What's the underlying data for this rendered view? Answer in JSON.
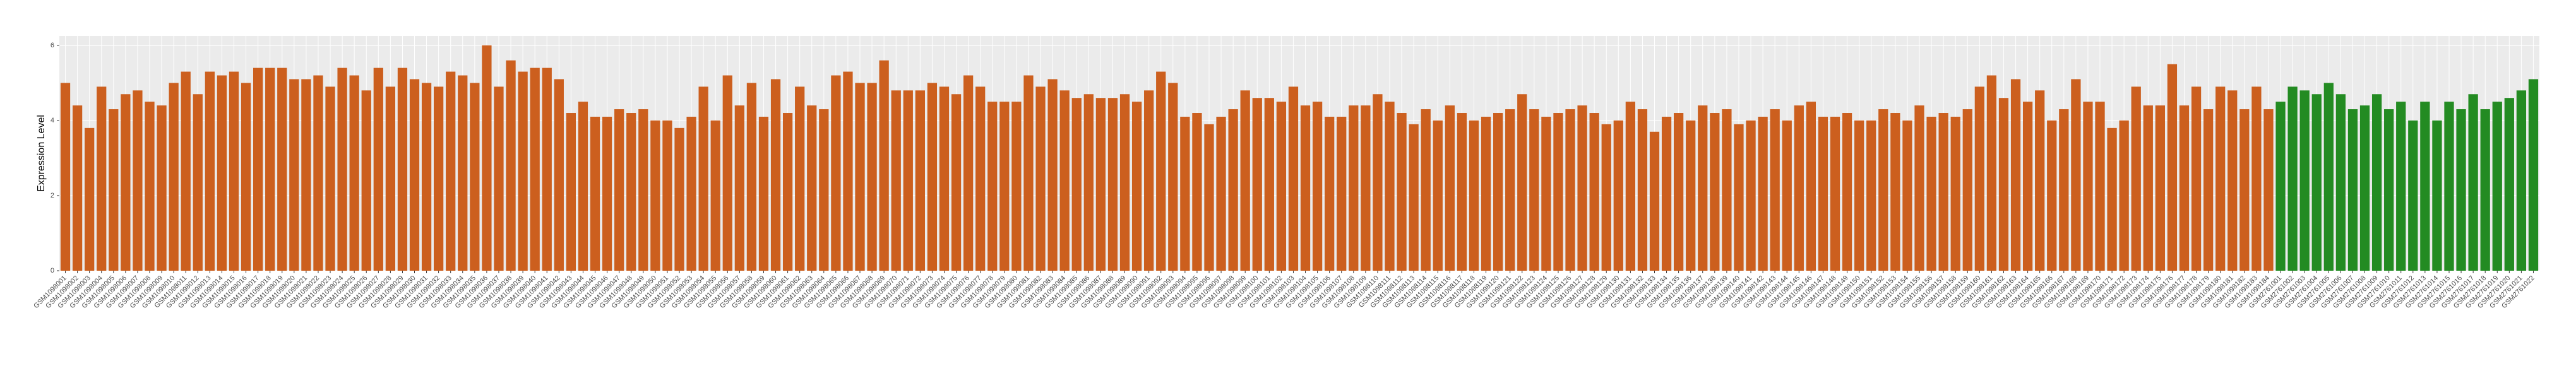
{
  "chart_data": {
    "type": "bar",
    "y_label": "Expression Level",
    "ylim": [
      0,
      6.25
    ],
    "yticks": [
      0,
      2,
      4,
      6
    ],
    "grid": true,
    "series": [
      {
        "color": "#cc5f1e",
        "categories": [
          "GSM1098001",
          "GSM1098002",
          "GSM1098003",
          "GSM1098004",
          "GSM1098005",
          "GSM1098006",
          "GSM1098007",
          "GSM1098008",
          "GSM1098009",
          "GSM1098010",
          "GSM1098011",
          "GSM1098012",
          "GSM1098013",
          "GSM1098014",
          "GSM1098015",
          "GSM1098016",
          "GSM1098017",
          "GSM1098018",
          "GSM1098019",
          "GSM1098020",
          "GSM1098021",
          "GSM1098022",
          "GSM1098023",
          "GSM1098024",
          "GSM1098025",
          "GSM1098026",
          "GSM1098027",
          "GSM1098028",
          "GSM1098029",
          "GSM1098030",
          "GSM1098031",
          "GSM1098032",
          "GSM1098033",
          "GSM1098034",
          "GSM1098035",
          "GSM1098036",
          "GSM1098037",
          "GSM1098038",
          "GSM1098039",
          "GSM1098040",
          "GSM1098041",
          "GSM1098042",
          "GSM1098043",
          "GSM1098044",
          "GSM1098045",
          "GSM1098046",
          "GSM1098047",
          "GSM1098048",
          "GSM1098049",
          "GSM1098050",
          "GSM1098051",
          "GSM1098052",
          "GSM1098053",
          "GSM1098054",
          "GSM1098055",
          "GSM1098056",
          "GSM1098057",
          "GSM1098058",
          "GSM1098059",
          "GSM1098060",
          "GSM1098061",
          "GSM1098062",
          "GSM1098063",
          "GSM1098064",
          "GSM1098065",
          "GSM1098066",
          "GSM1098067",
          "GSM1098068",
          "GSM1098069",
          "GSM1098070",
          "GSM1098071",
          "GSM1098072",
          "GSM1098073",
          "GSM1098074",
          "GSM1098075",
          "GSM1098076",
          "GSM1098077",
          "GSM1098078",
          "GSM1098079",
          "GSM1098080",
          "GSM1098081",
          "GSM1098082",
          "GSM1098083",
          "GSM1098084",
          "GSM1098085",
          "GSM1098086",
          "GSM1098087",
          "GSM1098088",
          "GSM1098089",
          "GSM1098090",
          "GSM1098091",
          "GSM1098092",
          "GSM1098093",
          "GSM1098094",
          "GSM1098095",
          "GSM1098096",
          "GSM1098097",
          "GSM1098098",
          "GSM1098099",
          "GSM1098100",
          "GSM1098101",
          "GSM1098102",
          "GSM1098103",
          "GSM1098104",
          "GSM1098105",
          "GSM1098106",
          "GSM1098107",
          "GSM1098108",
          "GSM1098109",
          "GSM1098110",
          "GSM1098111",
          "GSM1098112",
          "GSM1098113",
          "GSM1098114",
          "GSM1098115",
          "GSM1098116",
          "GSM1098117",
          "GSM1098118",
          "GSM1098119",
          "GSM1098120",
          "GSM1098121",
          "GSM1098122",
          "GSM1098123",
          "GSM1098124",
          "GSM1098125",
          "GSM1098126",
          "GSM1098127",
          "GSM1098128",
          "GSM1098129",
          "GSM1098130",
          "GSM1098131",
          "GSM1098132",
          "GSM1098133",
          "GSM1098134",
          "GSM1098135",
          "GSM1098136",
          "GSM1098137",
          "GSM1098138",
          "GSM1098139",
          "GSM1098140",
          "GSM1098141",
          "GSM1098142",
          "GSM1098143",
          "GSM1098144",
          "GSM1098145",
          "GSM1098146",
          "GSM1098147",
          "GSM1098148",
          "GSM1098149",
          "GSM1098150",
          "GSM1098151",
          "GSM1098152",
          "GSM1098153",
          "GSM1098154",
          "GSM1098155",
          "GSM1098156",
          "GSM1098157",
          "GSM1098158",
          "GSM1098159",
          "GSM1098160",
          "GSM1098161",
          "GSM1098162",
          "GSM1098163",
          "GSM1098164",
          "GSM1098165",
          "GSM1098166",
          "GSM1098167",
          "GSM1098168",
          "GSM1098169",
          "GSM1098170",
          "GSM1098171",
          "GSM1098172",
          "GSM1098173",
          "GSM1098174",
          "GSM1098175",
          "GSM1098176",
          "GSM1098177",
          "GSM1098178",
          "GSM1098179",
          "GSM1098180",
          "GSM1098181",
          "GSM1098182",
          "GSM1098183",
          "GSM1098184"
        ],
        "values": [
          5.0,
          4.4,
          3.8,
          4.9,
          4.3,
          4.7,
          4.8,
          4.5,
          4.4,
          5.0,
          5.3,
          4.7,
          5.3,
          5.2,
          5.3,
          5.0,
          5.4,
          5.4,
          5.4,
          5.1,
          5.1,
          5.2,
          4.9,
          5.4,
          5.2,
          4.8,
          5.4,
          4.9,
          5.4,
          5.1,
          5.0,
          4.9,
          5.3,
          5.2,
          5.0,
          6.0,
          4.9,
          5.6,
          5.3,
          5.4,
          5.4,
          5.1,
          4.2,
          4.5,
          4.1,
          4.1,
          4.3,
          4.2,
          4.3,
          4.0,
          4.0,
          3.8,
          4.1,
          4.9,
          4.0,
          5.2,
          4.4,
          5.0,
          4.1,
          5.1,
          4.2,
          4.9,
          4.4,
          4.3,
          5.2,
          5.3,
          5.0,
          5.0,
          5.6,
          4.8,
          4.8,
          4.8,
          5.0,
          4.9,
          4.7,
          5.2,
          4.9,
          4.5,
          4.5,
          4.5,
          5.2,
          4.9,
          5.1,
          4.8,
          4.6,
          4.7,
          4.6,
          4.6,
          4.7,
          4.5,
          4.8,
          5.3,
          5.0,
          4.1,
          4.2,
          3.9,
          4.1,
          4.3,
          4.8,
          4.6,
          4.6,
          4.5,
          4.9,
          4.4,
          4.5,
          4.1,
          4.1,
          4.4,
          4.4,
          4.7,
          4.5,
          4.2,
          3.9,
          4.3,
          4.0,
          4.4,
          4.2,
          4.0,
          4.1,
          4.2,
          4.3,
          4.7,
          4.3,
          4.1,
          4.2,
          4.3,
          4.4,
          4.2,
          3.9,
          4.0,
          4.5,
          4.3,
          3.7,
          4.1,
          4.2,
          4.0,
          4.4,
          4.2,
          4.3,
          3.9,
          4.0,
          4.1,
          4.3,
          4.0,
          4.4,
          4.5,
          4.1,
          4.1,
          4.2,
          4.0,
          4.0,
          4.3,
          4.2,
          4.0,
          4.4,
          4.1,
          4.2,
          4.1,
          4.3,
          4.9,
          5.2,
          4.6,
          5.1,
          4.5,
          4.8,
          4.0,
          4.3,
          5.1,
          4.5,
          4.5,
          3.8,
          4.0,
          4.9,
          4.4,
          4.4,
          5.5,
          4.4,
          4.9,
          4.3,
          4.9,
          4.8,
          4.3,
          4.9,
          4.3
        ]
      },
      {
        "color": "#238b22",
        "categories": [
          "GSM2761001",
          "GSM2761002",
          "GSM2761003",
          "GSM2761004",
          "GSM2761005",
          "GSM2761006",
          "GSM2761007",
          "GSM2761008",
          "GSM2761009",
          "GSM2761010",
          "GSM2761011",
          "GSM2761012",
          "GSM2761013",
          "GSM2761014",
          "GSM2761015",
          "GSM2761016",
          "GSM2761017",
          "GSM2761018",
          "GSM2761019",
          "GSM2761020",
          "GSM2761021",
          "GSM2761022"
        ],
        "values": [
          4.5,
          4.9,
          4.8,
          4.7,
          5.0,
          4.7,
          4.3,
          4.4,
          4.7,
          4.3,
          4.5,
          4.0,
          4.5,
          4.0,
          4.5,
          4.3,
          4.7,
          4.3,
          4.5,
          4.6,
          4.8,
          5.1
        ]
      }
    ]
  }
}
